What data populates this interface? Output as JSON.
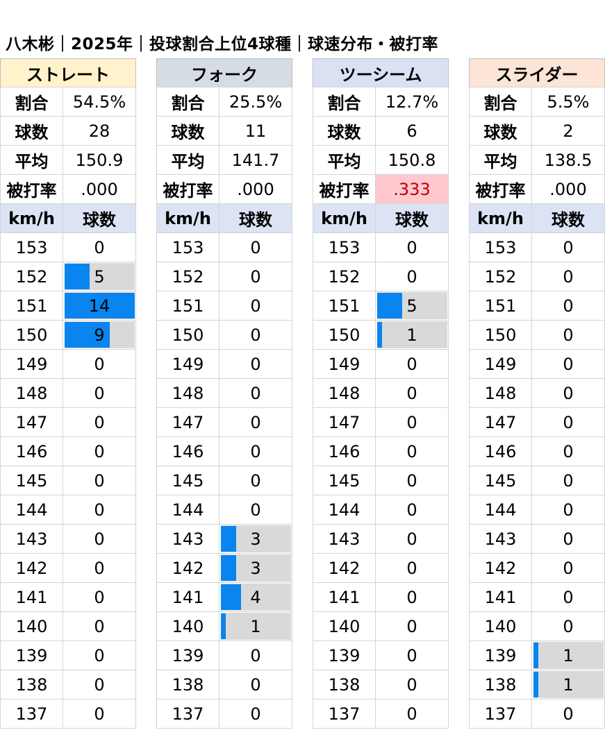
{
  "title": "八木彬｜2025年｜投球割合上位4球種｜球速分布・被打率",
  "labels": {
    "ratio": "割合",
    "count": "球数",
    "avg": "平均",
    "ba": "被打率",
    "kmh": "km/h",
    "pitches": "球数"
  },
  "colors": {
    "bar": "#0a84ef",
    "bar_background": "#d9d9d9",
    "header_background": "#dbe3f4",
    "highlight_background": "#ffc9cf",
    "highlight_text": "#c00000"
  },
  "chart_data": {
    "type": "table",
    "speeds": [
      "153",
      "152",
      "151",
      "150",
      "149",
      "148",
      "147",
      "146",
      "145",
      "144",
      "143",
      "142",
      "141",
      "140",
      "139",
      "138",
      "137"
    ],
    "pitch_types": [
      {
        "name": "ストレート",
        "header_color": "#fff2cc",
        "ratio": "54.5%",
        "count": "28",
        "avg": "150.9",
        "ba": ".000",
        "ba_highlight": false,
        "bar_max": 14,
        "counts": [
          0,
          5,
          14,
          9,
          0,
          0,
          0,
          0,
          0,
          0,
          0,
          0,
          0,
          0,
          0,
          0,
          0
        ]
      },
      {
        "name": "フォーク",
        "header_color": "#d6dce4",
        "ratio": "25.5%",
        "count": "11",
        "avg": "141.7",
        "ba": ".000",
        "ba_highlight": false,
        "bar_max": 14,
        "counts": [
          0,
          0,
          0,
          0,
          0,
          0,
          0,
          0,
          0,
          0,
          3,
          3,
          4,
          1,
          0,
          0,
          0
        ]
      },
      {
        "name": "ツーシーム",
        "header_color": "#d9e1f2",
        "ratio": "12.7%",
        "count": "6",
        "avg": "150.8",
        "ba": ".333",
        "ba_highlight": true,
        "bar_max": 14,
        "counts": [
          0,
          0,
          5,
          1,
          0,
          0,
          0,
          0,
          0,
          0,
          0,
          0,
          0,
          0,
          0,
          0,
          0
        ]
      },
      {
        "name": "スライダー",
        "header_color": "#fce4d6",
        "ratio": "5.5%",
        "count": "2",
        "avg": "138.5",
        "ba": ".000",
        "ba_highlight": false,
        "bar_max": 14,
        "counts": [
          0,
          0,
          0,
          0,
          0,
          0,
          0,
          0,
          0,
          0,
          0,
          0,
          0,
          0,
          1,
          1,
          0
        ]
      }
    ]
  }
}
